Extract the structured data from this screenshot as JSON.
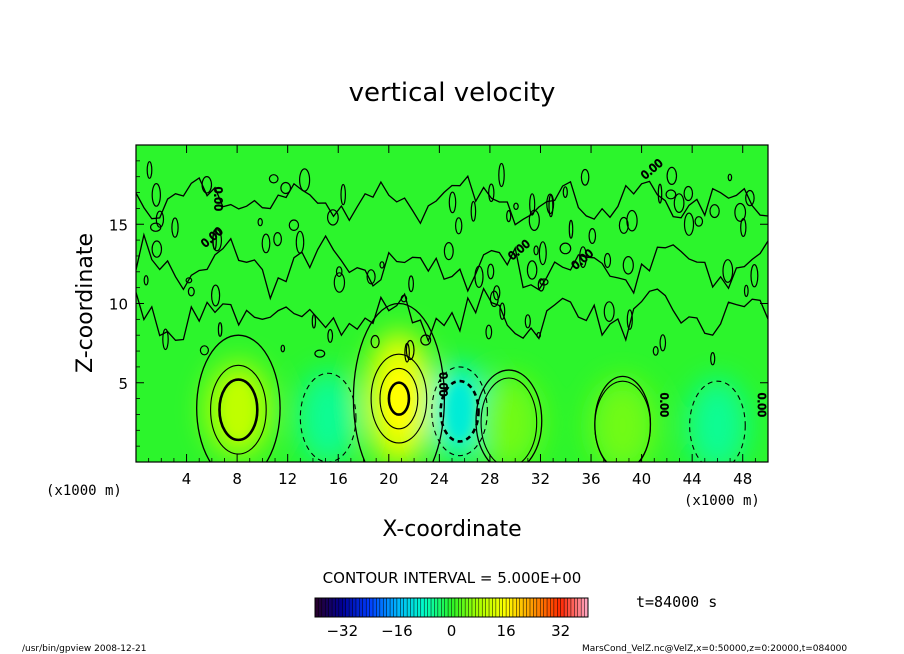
{
  "chart_data": {
    "type": "heatmap",
    "title": "vertical velocity",
    "xlabel": "X-coordinate",
    "ylabel": "Z-coordinate",
    "x_unit_label": "(x1000 m)",
    "z_unit_label": "(x1000 m)",
    "xlim": [
      0,
      50
    ],
    "ylim": [
      0,
      20
    ],
    "x_ticks": [
      4,
      8,
      12,
      16,
      20,
      24,
      28,
      32,
      36,
      40,
      44,
      48
    ],
    "y_ticks": [
      5,
      10,
      15
    ],
    "contour_interval_text": "CONTOUR INTERVAL = 5.000E+00",
    "time_text": "t=84000 s",
    "colorbar_ticks": [
      -32,
      -16,
      0,
      16,
      32
    ],
    "colorbar_range": [
      -40,
      40
    ],
    "contour_labels": [
      "0.00",
      "0.00",
      "0.00",
      "0.00",
      "0.00",
      "0.00",
      "0.00",
      "0.00"
    ],
    "features": [
      {
        "kind": "updraft",
        "x": 8.1,
        "z": 3.3,
        "peak": 10
      },
      {
        "kind": "updraft",
        "x": 20.8,
        "z": 4.0,
        "peak": 16
      },
      {
        "kind": "downdraft",
        "x": 25.6,
        "z": 3.2,
        "peak": -10
      },
      {
        "kind": "downdraft",
        "x": 15.2,
        "z": 2.8,
        "peak": -6
      },
      {
        "kind": "updraft",
        "x": 29.5,
        "z": 2.5,
        "peak": 5
      },
      {
        "kind": "downdraft",
        "x": 46.0,
        "z": 2.3,
        "peak": -6
      },
      {
        "kind": "updraft",
        "x": 38.5,
        "z": 2.3,
        "peak": 5
      }
    ]
  },
  "footer": {
    "left": "/usr/bin/gpview  2008-12-21",
    "right": "MarsCond_VelZ.nc@VelZ,x=0:50000,z=0:20000,t=084000"
  }
}
